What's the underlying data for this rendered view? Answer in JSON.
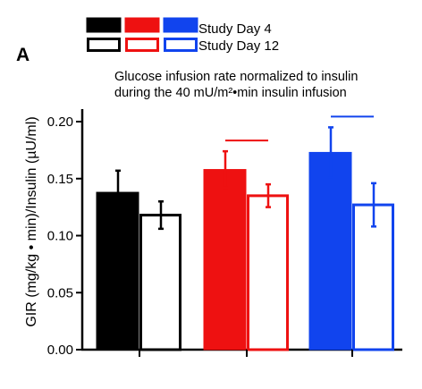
{
  "panel_label": "A",
  "chart_data": {
    "type": "bar",
    "title": "Glucose infusion rate normalized to insulin\nduring the 40 mU/m²•min insulin infusion",
    "title_lines": [
      "Glucose infusion rate normalized to insulin",
      "during the 40 mU/m²•min insulin infusion"
    ],
    "ylabel": "GIR (mg/kg • min)/Insulin (µU/ml)",
    "xlabel": "",
    "ylim": [
      0,
      0.22
    ],
    "yticks": [
      0.0,
      0.05,
      0.1,
      0.15,
      0.2
    ],
    "ytick_labels": [
      "0.00",
      "0.05",
      "0.10",
      "0.15",
      "0.20"
    ],
    "grid": false,
    "legend_position": "top",
    "colors": [
      "#000000",
      "#ee1111",
      "#1144ee"
    ],
    "legend": [
      {
        "label": "Study Day 4",
        "style": "filled"
      },
      {
        "label": "Study Day 12",
        "style": "open"
      }
    ],
    "groups": [
      {
        "color": "#000000",
        "bars": [
          {
            "series": "Study Day 4",
            "value": 0.138,
            "err": 0.019,
            "filled": true
          },
          {
            "series": "Study Day 12",
            "value": 0.118,
            "err": 0.012,
            "filled": false
          }
        ],
        "significance": false
      },
      {
        "color": "#ee1111",
        "bars": [
          {
            "series": "Study Day 4",
            "value": 0.158,
            "err": 0.016,
            "filled": true
          },
          {
            "series": "Study Day 12",
            "value": 0.135,
            "err": 0.01,
            "filled": false
          }
        ],
        "significance": true
      },
      {
        "color": "#1144ee",
        "bars": [
          {
            "series": "Study Day 4",
            "value": 0.173,
            "err": 0.022,
            "filled": true
          },
          {
            "series": "Study Day 12",
            "value": 0.127,
            "err": 0.019,
            "filled": false
          }
        ],
        "significance": true
      }
    ]
  }
}
